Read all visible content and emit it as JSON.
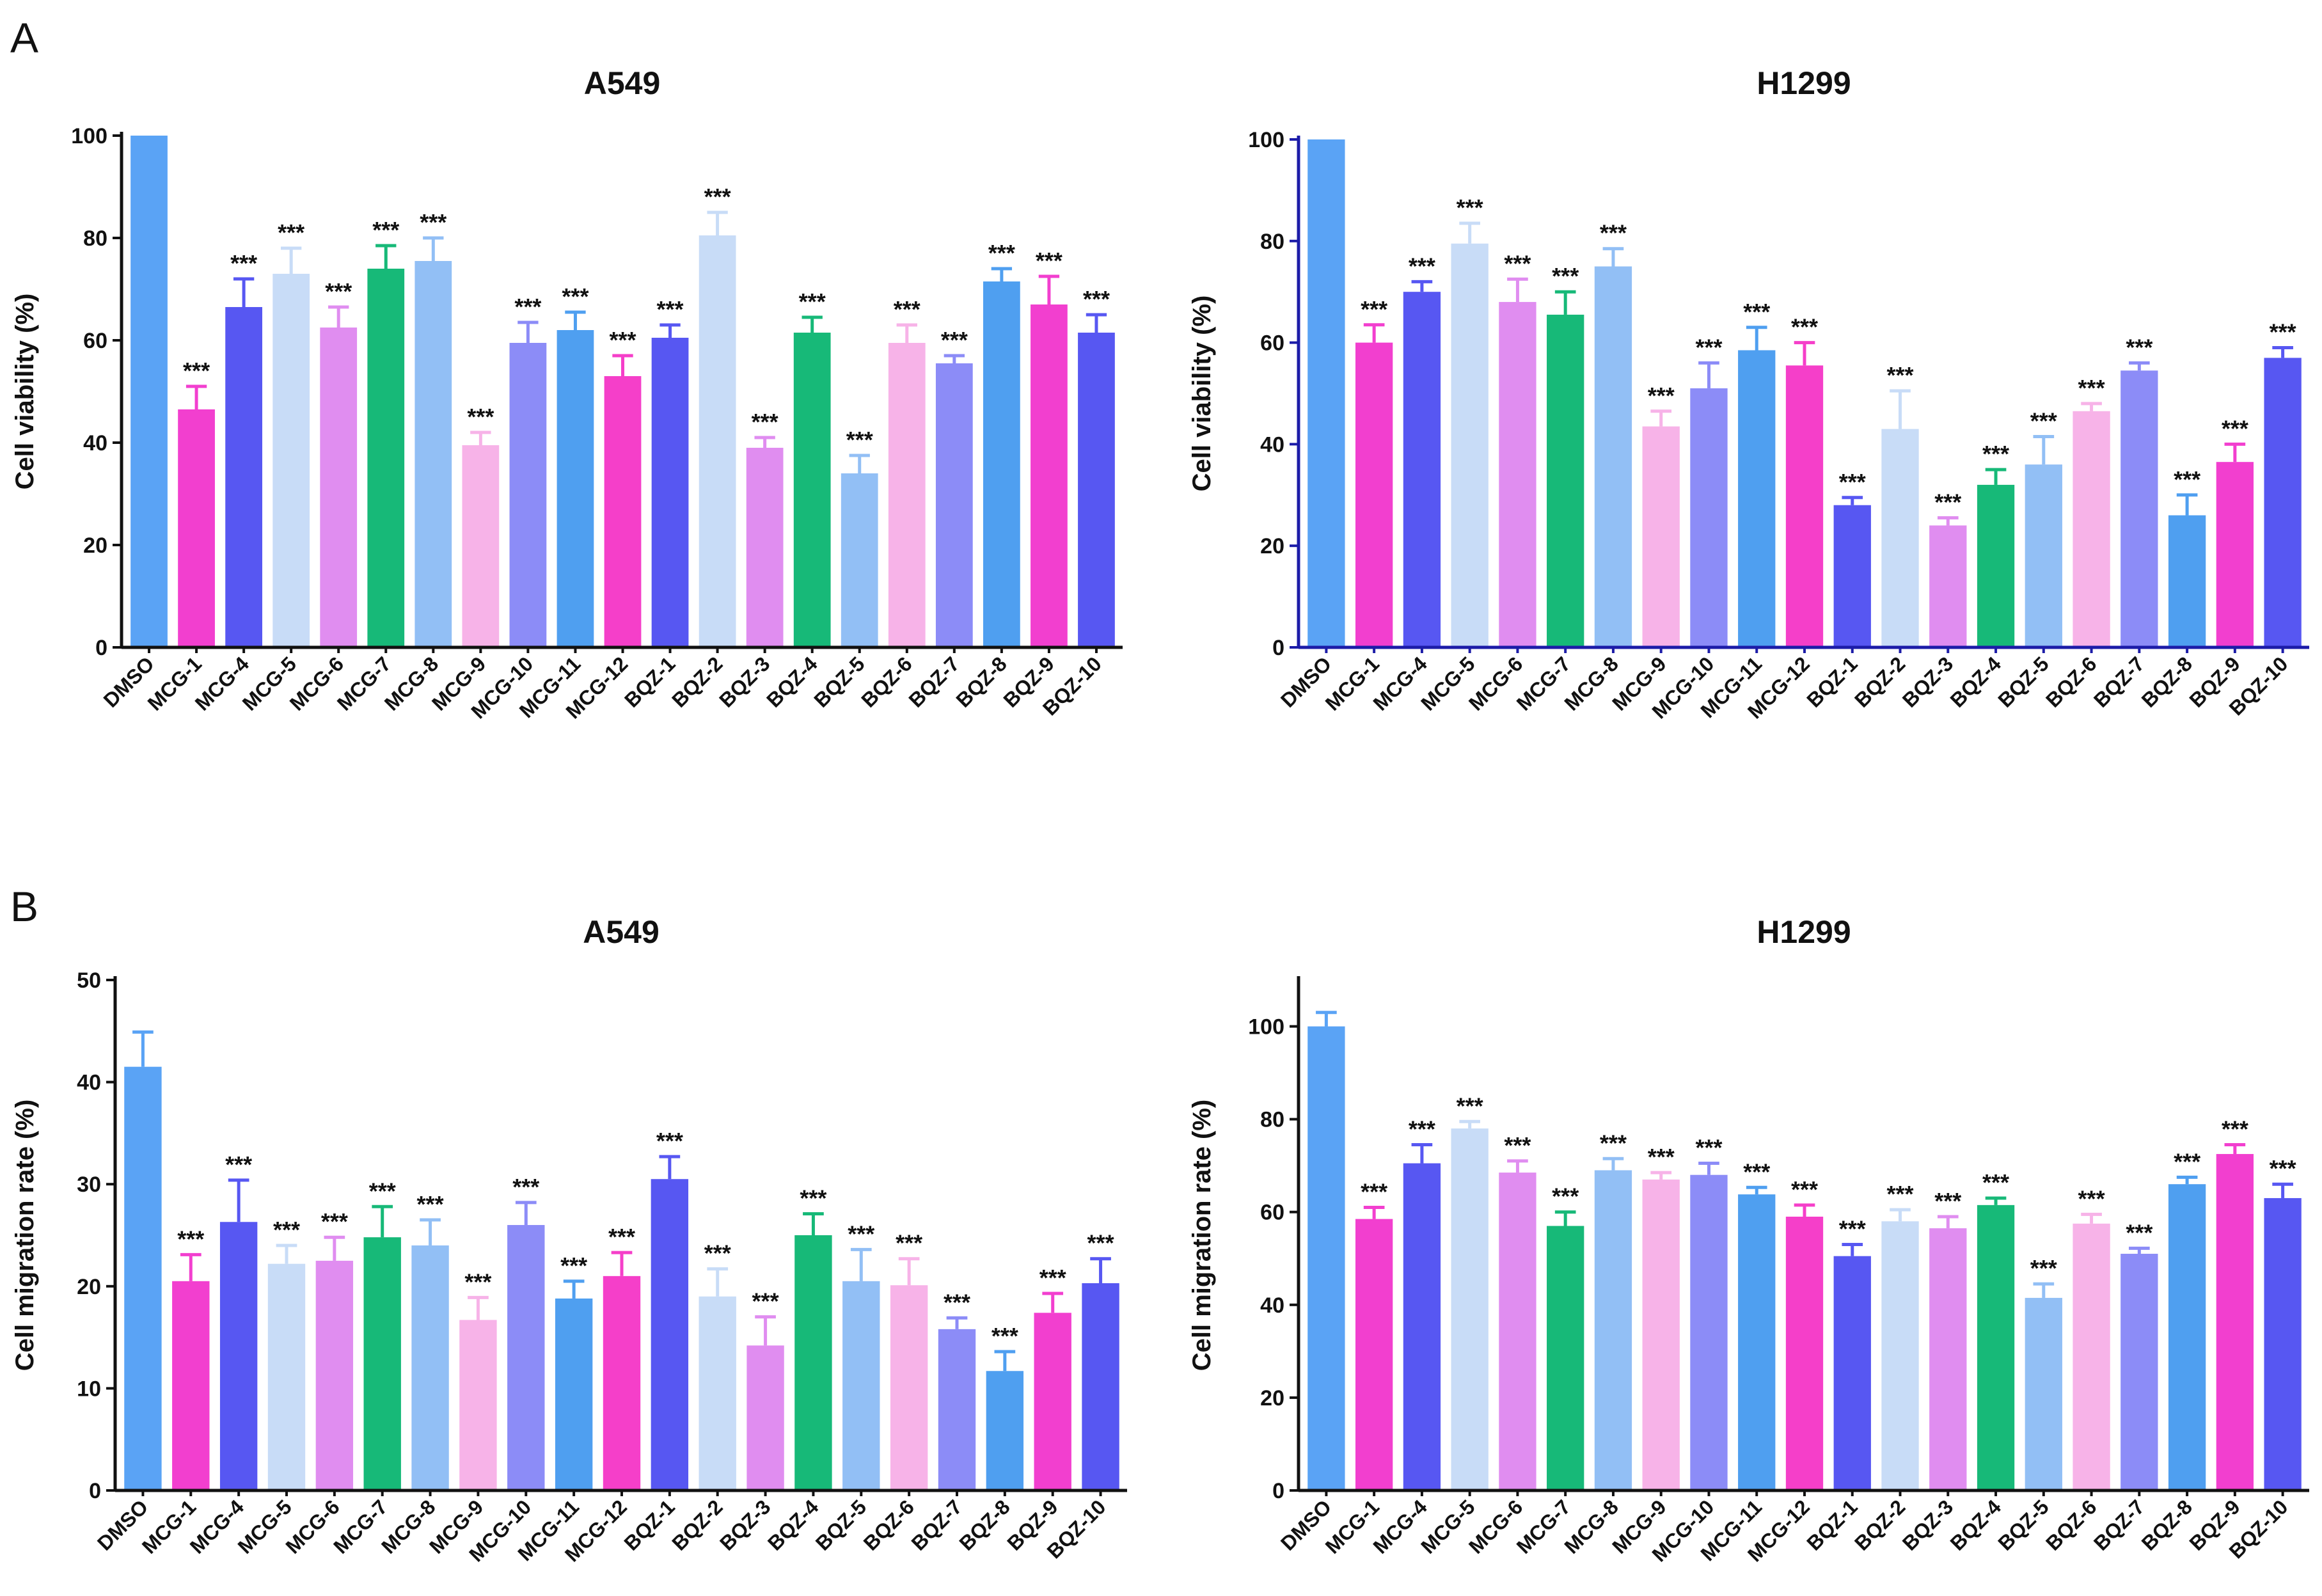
{
  "panels": [
    {
      "letter": "A"
    },
    {
      "letter": "B"
    }
  ],
  "chart_data": [
    {
      "type": "bar",
      "title": "A549",
      "ylabel": "Cell viability (%)",
      "ylim": [
        0,
        100
      ],
      "yticks": [
        0,
        20,
        40,
        60,
        80,
        100
      ],
      "categories": [
        "DMSO",
        "MCG-1",
        "MCG-4",
        "MCG-5",
        "MCG-6",
        "MCG-7",
        "MCG-8",
        "MCG-9",
        "MCG-10",
        "MCG-11",
        "MCG-12",
        "BQZ-1",
        "BQZ-2",
        "BQZ-3",
        "BQZ-4",
        "BQZ-5",
        "BQZ-6",
        "BQZ-7",
        "BQZ-8",
        "BQZ-9",
        "BQZ-10"
      ],
      "values": [
        100,
        46.5,
        66.5,
        73,
        62.5,
        74,
        75.5,
        39.5,
        59.5,
        62,
        53,
        60.5,
        80.5,
        39,
        61.5,
        34,
        59.5,
        55.5,
        71.5,
        67,
        61.5
      ],
      "errors": [
        0,
        4.5,
        5.5,
        5,
        4,
        4.5,
        4.5,
        2.5,
        4,
        3.5,
        4,
        2.5,
        4.5,
        2,
        3,
        3.5,
        3.5,
        1.5,
        2.5,
        5.5,
        3.5
      ],
      "annotations": [
        "",
        "***",
        "***",
        "***",
        "***",
        "***",
        "***",
        "***",
        "***",
        "***",
        "***",
        "***",
        "***",
        "***",
        "***",
        "***",
        "***",
        "***",
        "***",
        "***",
        "***"
      ],
      "colors": [
        "#5aa3f5",
        "#f23fcf",
        "#5757f2",
        "#c8dcf7",
        "#e08df0",
        "#17b978",
        "#92bff5",
        "#f7b3e8",
        "#8c8cf7",
        "#4f9ff0",
        "#f53fc9",
        "#5757f2",
        "#c8dcf7",
        "#e08df0",
        "#17b978",
        "#92bff5",
        "#f7b3e8",
        "#8c8cf7",
        "#4f9ff0",
        "#f23fcf",
        "#5757f2"
      ],
      "grid": false,
      "legend": "none"
    },
    {
      "type": "bar",
      "title": "H1299",
      "ylabel": "Cell viability (%)",
      "ylim": [
        0,
        100
      ],
      "yticks": [
        0,
        20,
        40,
        60,
        80,
        100
      ],
      "categories": [
        "DMSO",
        "MCG-1",
        "MCG-4",
        "MCG-5",
        "MCG-6",
        "MCG-7",
        "MCG-8",
        "MCG-9",
        "MCG-10",
        "MCG-11",
        "MCG-12",
        "BQZ-1",
        "BQZ-2",
        "BQZ-3",
        "BQZ-4",
        "BQZ-5",
        "BQZ-6",
        "BQZ-7",
        "BQZ-8",
        "BQZ-9",
        "BQZ-10"
      ],
      "values": [
        100,
        60,
        70,
        79.5,
        68,
        65.5,
        75,
        43.5,
        51,
        58.5,
        55.5,
        28,
        43,
        24,
        32,
        36,
        46.5,
        54.5,
        26,
        36.5,
        57
      ],
      "errors": [
        0,
        3.5,
        2,
        4,
        4.5,
        4.5,
        3.5,
        3,
        5,
        4.5,
        4.5,
        1.5,
        7.5,
        1.5,
        3,
        5.5,
        1.5,
        1.5,
        4,
        3.5,
        2
      ],
      "annotations": [
        "",
        "***",
        "***",
        "***",
        "***",
        "***",
        "***",
        "***",
        "***",
        "***",
        "***",
        "***",
        "***",
        "***",
        "***",
        "***",
        "***",
        "***",
        "***",
        "***",
        "***"
      ],
      "colors": [
        "#5aa3f5",
        "#f23fcf",
        "#5757f2",
        "#c8dcf7",
        "#e08df0",
        "#17b978",
        "#92bff5",
        "#f7b3e8",
        "#8c8cf7",
        "#4f9ff0",
        "#f53fc9",
        "#5757f2",
        "#c8dcf7",
        "#e08df0",
        "#17b978",
        "#92bff5",
        "#f7b3e8",
        "#8c8cf7",
        "#4f9ff0",
        "#f23fcf",
        "#5757f2"
      ],
      "grid": false,
      "legend": "none"
    },
    {
      "type": "bar",
      "title": "A549",
      "ylabel": "Cell migration rate  (%)",
      "ylim": [
        0,
        50
      ],
      "yticks": [
        0,
        10,
        20,
        30,
        40,
        50
      ],
      "categories": [
        "DMSO",
        "MCG-1",
        "MCG-4",
        "MCG-5",
        "MCG-6",
        "MCG-7",
        "MCG-8",
        "MCG-9",
        "MCG-10",
        "MCG-11",
        "MCG-12",
        "BQZ-1",
        "BQZ-2",
        "BQZ-3",
        "BQZ-4",
        "BQZ-5",
        "BQZ-6",
        "BQZ-7",
        "BQZ-8",
        "BQZ-9",
        "BQZ-10"
      ],
      "values": [
        41.5,
        20.5,
        26.3,
        22.2,
        22.5,
        24.8,
        24,
        16.7,
        26,
        18.8,
        21,
        30.5,
        19,
        14.2,
        25,
        20.5,
        20.1,
        15.8,
        11.7,
        17.4,
        20.3
      ],
      "errors": [
        3.4,
        2.6,
        4.1,
        1.8,
        2.3,
        3,
        2.5,
        2.2,
        2.2,
        1.7,
        2.3,
        2.2,
        2.7,
        2.8,
        2.1,
        3.1,
        2.6,
        1.1,
        1.9,
        1.9,
        2.4
      ],
      "annotations": [
        "",
        "***",
        "***",
        "***",
        "***",
        "***",
        "***",
        "***",
        "***",
        "***",
        "***",
        "***",
        "***",
        "***",
        "***",
        "***",
        "***",
        "***",
        "***",
        "***",
        "***"
      ],
      "colors": [
        "#5aa3f5",
        "#f23fcf",
        "#5757f2",
        "#c8dcf7",
        "#e08df0",
        "#17b978",
        "#92bff5",
        "#f7b3e8",
        "#8c8cf7",
        "#4f9ff0",
        "#f53fc9",
        "#5757f2",
        "#c8dcf7",
        "#e08df0",
        "#17b978",
        "#92bff5",
        "#f7b3e8",
        "#8c8cf7",
        "#4f9ff0",
        "#f23fcf",
        "#5757f2"
      ],
      "grid": false,
      "legend": "none"
    },
    {
      "type": "bar",
      "title": "H1299",
      "ylabel": "Cell migration rate  (%)",
      "ylim": [
        0,
        110
      ],
      "yticks": [
        0,
        20,
        40,
        60,
        80,
        100
      ],
      "categories": [
        "DMSO",
        "MCG-1",
        "MCG-4",
        "MCG-5",
        "MCG-6",
        "MCG-7",
        "MCG-8",
        "MCG-9",
        "MCG-10",
        "MCG-11",
        "MCG-12",
        "BQZ-1",
        "BQZ-2",
        "BQZ-3",
        "BQZ-4",
        "BQZ-5",
        "BQZ-6",
        "BQZ-7",
        "BQZ-8",
        "BQZ-9",
        "BQZ-10"
      ],
      "values": [
        100,
        58.5,
        70.5,
        78,
        68.5,
        57,
        69,
        67,
        68,
        63.8,
        59,
        50.5,
        58,
        56.5,
        61.5,
        41.5,
        57.5,
        51,
        66,
        72.5,
        63
      ],
      "errors": [
        3,
        2.5,
        4,
        1.5,
        2.5,
        3,
        2.5,
        1.5,
        2.5,
        1.5,
        2.5,
        2.5,
        2.5,
        2.5,
        1.5,
        3,
        2,
        1.2,
        1.5,
        2,
        3
      ],
      "annotations": [
        "",
        "***",
        "***",
        "***",
        "***",
        "***",
        "***",
        "***",
        "***",
        "***",
        "***",
        "***",
        "***",
        "***",
        "***",
        "***",
        "***",
        "***",
        "***",
        "***",
        "***"
      ],
      "colors": [
        "#5aa3f5",
        "#f23fcf",
        "#5757f2",
        "#c8dcf7",
        "#e08df0",
        "#17b978",
        "#92bff5",
        "#f7b3e8",
        "#8c8cf7",
        "#4f9ff0",
        "#f53fc9",
        "#5757f2",
        "#c8dcf7",
        "#e08df0",
        "#17b978",
        "#92bff5",
        "#f7b3e8",
        "#8c8cf7",
        "#4f9ff0",
        "#f23fcf",
        "#5757f2"
      ],
      "grid": false,
      "legend": "none"
    }
  ]
}
